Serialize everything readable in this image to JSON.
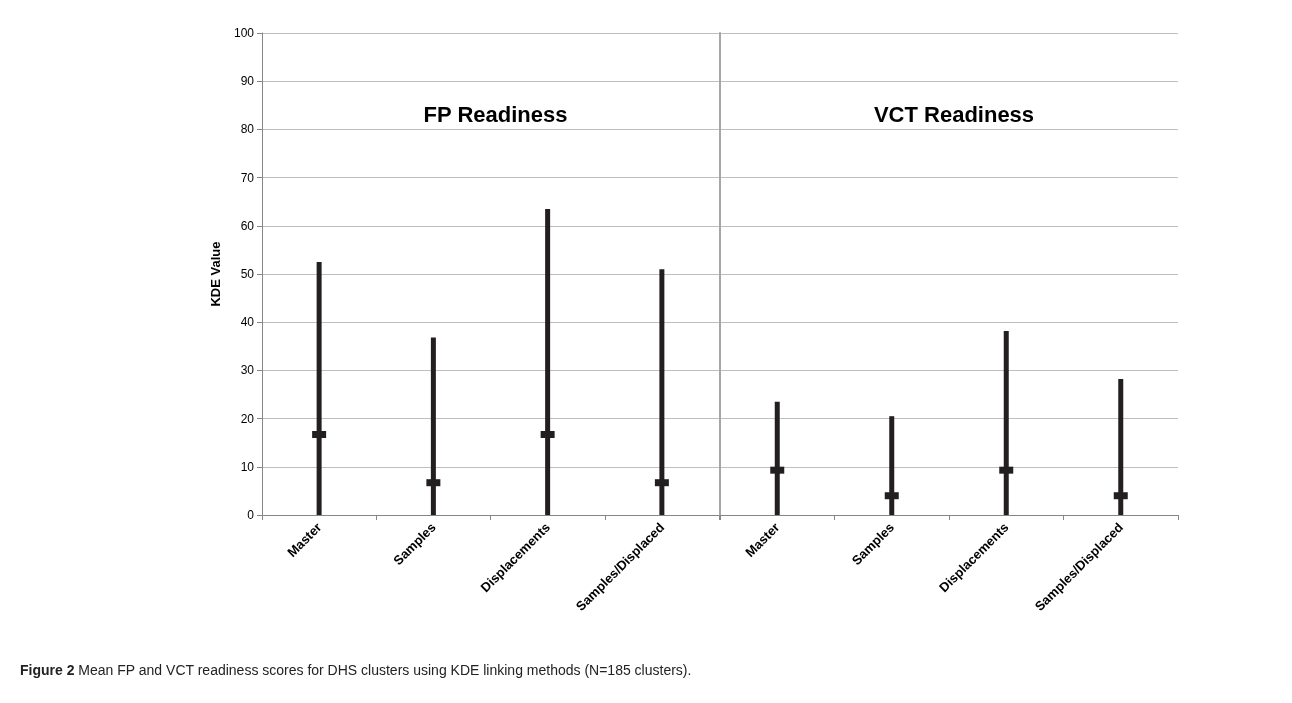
{
  "chart_data": [
    {
      "type": "bar",
      "title": "FP Readiness",
      "ylabel": "KDE Value",
      "categories": [
        "Master",
        "Samples",
        "Displacements",
        "Samples/Displaced"
      ],
      "series": [
        {
          "color": "#231f20",
          "values": [
            52.5,
            36.8,
            63.5,
            51
          ]
        },
        {
          "type": "scatter",
          "color": "#231f20",
          "marker": "square",
          "x": [
            "Master",
            "Samples",
            "Displacements",
            "Samples/Displaced"
          ],
          "values": [
            16.7,
            6.7,
            16.7,
            6.7
          ]
        }
      ],
      "ylim": [
        0,
        100
      ],
      "yticks": [
        0,
        10,
        20,
        30,
        40,
        50,
        60,
        70,
        80,
        90,
        100
      ],
      "grid": "y",
      "annotations": [
        "Figure 2 Mean FP and VCT readiness scores for DHS clusters using KDE linking methods (N=185 clusters)."
      ]
    },
    {
      "type": "bar",
      "title": "VCT Readiness",
      "categories": [
        "Master",
        "Samples",
        "Displacements",
        "Samples/Displaced"
      ],
      "series": [
        {
          "color": "#231f20",
          "values": [
            23.5,
            20.5,
            38.2,
            28.2
          ]
        },
        {
          "type": "scatter",
          "color": "#231f20",
          "marker": "square",
          "x": [
            "Master",
            "Samples",
            "Displacements",
            "Samples/Displaced"
          ],
          "values": [
            9.3,
            4,
            9.3,
            4
          ]
        }
      ],
      "ylim": [
        0,
        100
      ],
      "yticks": [
        0,
        10,
        20,
        30,
        40,
        50,
        60,
        70,
        80,
        90,
        100
      ],
      "grid": "y",
      "tick_labels": "x"
    }
  ]
}
